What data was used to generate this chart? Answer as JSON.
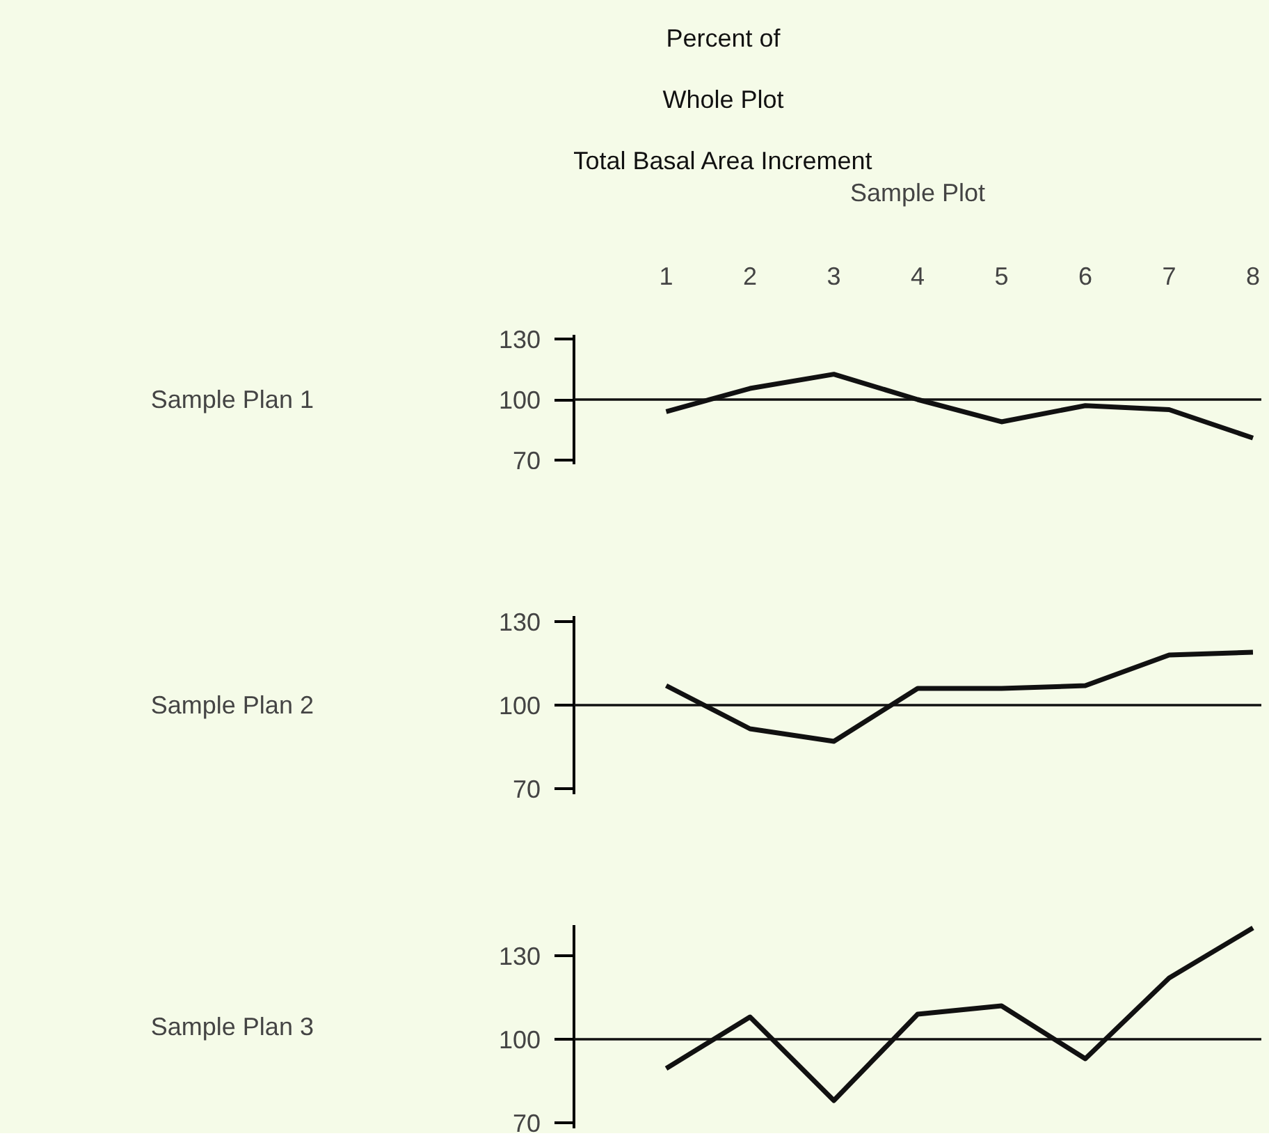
{
  "chart_data": [
    {
      "type": "line",
      "title": "Percent of\nWhole Plot\nTotal Basal Area Increment",
      "xlabel": "Sample Plot",
      "ylabel": "Sample Plan 1",
      "categories": [
        "1",
        "2",
        "3",
        "4",
        "5",
        "6",
        "7",
        "8"
      ],
      "series": [
        {
          "color": "#111111",
          "values": [
            94,
            105.5,
            112.5,
            100,
            89,
            97,
            95,
            81
          ]
        }
      ],
      "ylim": [
        68,
        132
      ],
      "yticks": [
        70,
        100,
        130
      ],
      "ref_lines": [
        {
          "axis": "y",
          "value": 100,
          "color": "#111111"
        }
      ]
    },
    {
      "type": "line",
      "ylabel": "Sample Plan 2",
      "categories": [
        "1",
        "2",
        "3",
        "4",
        "5",
        "6",
        "7",
        "8"
      ],
      "tick_labels": "y",
      "series": [
        {
          "color": "#111111",
          "values": [
            107,
            91.5,
            87,
            106,
            106,
            107,
            118,
            119
          ]
        }
      ],
      "ylim": [
        68,
        132
      ],
      "yticks": [
        70,
        100,
        130
      ],
      "ref_lines": [
        {
          "axis": "y",
          "value": 100,
          "color": "#111111"
        }
      ]
    },
    {
      "type": "line",
      "ylabel": "Sample Plan 3",
      "categories": [
        "1",
        "2",
        "3",
        "4",
        "5",
        "6",
        "7",
        "8"
      ],
      "tick_labels": "y",
      "series": [
        {
          "color": "#111111",
          "values": [
            89.5,
            108,
            78,
            109,
            112,
            93,
            122,
            140
          ]
        }
      ],
      "ylim": [
        68,
        141
      ],
      "yticks": [
        70,
        100,
        130
      ],
      "ref_lines": [
        {
          "axis": "y",
          "value": 100,
          "color": "#111111"
        }
      ]
    }
  ]
}
